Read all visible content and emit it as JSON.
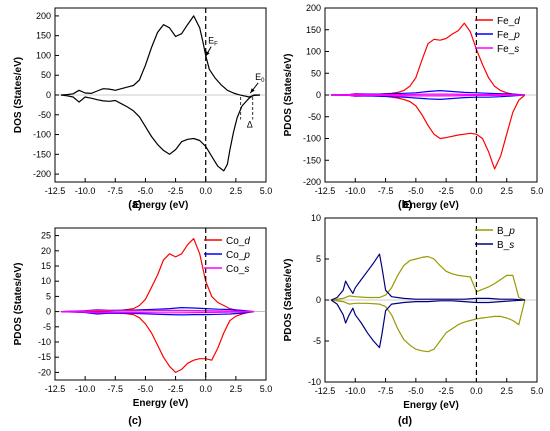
{
  "chart_data": [
    {
      "panel": "(a)",
      "type": "line",
      "xlabel": "Energy (eV)",
      "ylabel": "DOS (States/eV)",
      "xlim": [
        -12.5,
        5.0
      ],
      "ylim": [
        -220,
        220
      ],
      "xticks": [
        -12.5,
        -10.0,
        -7.5,
        -5.0,
        -2.5,
        0.0,
        2.5,
        5.0
      ],
      "yticks": [
        -200,
        -150,
        -100,
        -50,
        0,
        50,
        100,
        150,
        200
      ],
      "grid": false,
      "fermi_line_x": 0,
      "annotations": [
        {
          "text": "E",
          "sub": "F",
          "x": 0.2,
          "y": 130,
          "arrow_to": [
            0.0,
            98
          ]
        },
        {
          "text": "E",
          "sub": "0",
          "x": 4.1,
          "y": 38,
          "arrow_to": [
            3.7,
            5
          ]
        },
        {
          "text": "Δ",
          "x": 3.4,
          "y": -82
        }
      ],
      "series": [
        {
          "color": "#000000",
          "x": [
            -12.0,
            -11.5,
            -11.0,
            -10.5,
            -10.0,
            -9.5,
            -9.0,
            -8.5,
            -8.0,
            -7.5,
            -7.0,
            -6.5,
            -6.0,
            -5.5,
            -5.0,
            -4.5,
            -4.0,
            -3.5,
            -3.0,
            -2.5,
            -2.0,
            -1.5,
            -1.0,
            -0.5,
            -0.2,
            0.0,
            0.3,
            0.8,
            1.3,
            1.8,
            2.3,
            2.7,
            3.0,
            3.3,
            3.6,
            4.0,
            4.5
          ],
          "y": [
            0,
            1,
            3,
            12,
            5,
            4,
            10,
            16,
            15,
            12,
            16,
            20,
            24,
            38,
            75,
            120,
            158,
            178,
            170,
            148,
            155,
            178,
            200,
            170,
            130,
            100,
            65,
            42,
            25,
            12,
            5,
            1,
            -1,
            -3,
            -5,
            -1,
            0
          ]
        },
        {
          "color": "#000000",
          "x": [
            -12.0,
            -11.5,
            -11.0,
            -10.5,
            -10.0,
            -9.5,
            -9.0,
            -8.5,
            -8.0,
            -7.5,
            -7.0,
            -6.5,
            -6.0,
            -5.5,
            -5.0,
            -4.5,
            -4.0,
            -3.5,
            -3.0,
            -2.5,
            -2.0,
            -1.5,
            -1.0,
            -0.5,
            0.0,
            0.3,
            0.6,
            1.0,
            1.5,
            1.8,
            2.0,
            2.3,
            2.6,
            3.0,
            3.3,
            3.6,
            4.0,
            4.5
          ],
          "y": [
            0,
            -2,
            -5,
            -18,
            -5,
            -8,
            -12,
            -15,
            -16,
            -14,
            -22,
            -30,
            -40,
            -55,
            -80,
            -105,
            -125,
            -140,
            -150,
            -138,
            -118,
            -112,
            -110,
            -115,
            -130,
            -145,
            -160,
            -180,
            -192,
            -175,
            -140,
            -95,
            -58,
            -28,
            -18,
            -8,
            0,
            0
          ]
        }
      ]
    },
    {
      "panel": "(b)",
      "type": "line",
      "xlabel": "Energy (eV)",
      "ylabel": "PDOS (States/eV)",
      "xlim": [
        -12.5,
        5.0
      ],
      "ylim": [
        -200,
        200
      ],
      "xticks": [
        -12.5,
        -10.0,
        -7.5,
        -5.0,
        -2.5,
        0.0,
        2.5,
        5.0
      ],
      "yticks": [
        -200,
        -150,
        -100,
        -50,
        0,
        50,
        100,
        150,
        200
      ],
      "grid": false,
      "fermi_line_x": 0,
      "legend_position": "top-right",
      "series": [
        {
          "name": "Fe_d",
          "color": "#ff0000",
          "x": [
            -12.0,
            -11.0,
            -10.0,
            -9.0,
            -8.0,
            -7.5,
            -7.0,
            -6.5,
            -6.0,
            -5.5,
            -5.0,
            -4.5,
            -4.0,
            -3.5,
            -3.0,
            -2.5,
            -2.0,
            -1.5,
            -1.0,
            -0.5,
            0.0,
            0.5,
            1.0,
            1.5,
            2.0,
            2.5,
            3.0,
            3.5,
            4.0
          ],
          "y": [
            0,
            0,
            1,
            2,
            2,
            3,
            4,
            6,
            10,
            20,
            40,
            80,
            118,
            128,
            126,
            130,
            140,
            148,
            165,
            145,
            105,
            70,
            40,
            20,
            10,
            5,
            2,
            1,
            0
          ]
        },
        {
          "name": "Fe_d",
          "color": "#ff0000",
          "x": [
            -12.0,
            -11.0,
            -10.0,
            -9.0,
            -8.0,
            -7.5,
            -7.0,
            -6.5,
            -6.0,
            -5.5,
            -5.0,
            -4.5,
            -4.0,
            -3.5,
            -3.0,
            -2.5,
            -2.0,
            -1.5,
            -1.0,
            -0.5,
            0.0,
            0.5,
            1.0,
            1.5,
            2.0,
            2.5,
            3.0,
            3.5,
            4.0
          ],
          "y": [
            0,
            0,
            -1,
            -2,
            -2,
            -3,
            -5,
            -7,
            -10,
            -15,
            -25,
            -45,
            -70,
            -90,
            -100,
            -98,
            -95,
            -92,
            -90,
            -88,
            -90,
            -100,
            -130,
            -170,
            -140,
            -90,
            -40,
            -12,
            0
          ]
        },
        {
          "name": "Fe_p",
          "color": "#0000ff",
          "x": [
            -12.0,
            -10.5,
            -10.0,
            -9.0,
            -8.0,
            -7.0,
            -6.0,
            -5.0,
            -4.0,
            -3.0,
            -2.0,
            -1.0,
            0.0,
            1.0,
            2.0,
            3.0,
            4.0
          ],
          "y": [
            0,
            1,
            3,
            2,
            2,
            3,
            4,
            5,
            8,
            10,
            8,
            6,
            5,
            4,
            3,
            2,
            0
          ]
        },
        {
          "name": "Fe_p",
          "color": "#0000ff",
          "x": [
            -12.0,
            -10.5,
            -10.0,
            -9.0,
            -8.0,
            -7.0,
            -6.0,
            -5.0,
            -4.0,
            -3.0,
            -2.0,
            -1.0,
            0.0,
            1.0,
            2.0,
            3.0,
            4.0
          ],
          "y": [
            0,
            -1,
            -3,
            -2,
            -3,
            -4,
            -5,
            -7,
            -9,
            -10,
            -8,
            -6,
            -5,
            -5,
            -4,
            -2,
            0
          ]
        },
        {
          "name": "Fe_s",
          "color": "#ff00ff",
          "x": [
            -12.0,
            -10.5,
            -10.0,
            -9.0,
            -8.0,
            -6.0,
            -4.0,
            -2.0,
            0.0,
            2.0,
            4.0
          ],
          "y": [
            0,
            1,
            2,
            1,
            1,
            1,
            2,
            2,
            1,
            1,
            0
          ]
        },
        {
          "name": "Fe_s",
          "color": "#ff00ff",
          "x": [
            -12.0,
            -10.5,
            -10.0,
            -9.0,
            -8.0,
            -6.0,
            -4.0,
            -2.0,
            0.0,
            2.0,
            4.0
          ],
          "y": [
            0,
            -1,
            -2,
            -1,
            -1,
            -2,
            -2,
            -2,
            -1,
            -1,
            0
          ]
        }
      ]
    },
    {
      "panel": "(c)",
      "type": "line",
      "xlabel": "Energy (eV)",
      "ylabel": "PDOS (States/eV)",
      "xlim": [
        -12.5,
        5.0
      ],
      "ylim": [
        -22.5,
        27.5
      ],
      "xticks": [
        -12.5,
        -10.0,
        -7.5,
        -5.0,
        -2.5,
        0.0,
        2.5,
        5.0
      ],
      "yticks": [
        -20,
        -15,
        -10,
        -5,
        0,
        5,
        10,
        15,
        20,
        25
      ],
      "grid": false,
      "fermi_line_x": 0,
      "legend_position": "top-right",
      "series": [
        {
          "name": "Co_d",
          "color": "#ff0000",
          "x": [
            -12.0,
            -10.0,
            -8.0,
            -7.0,
            -6.0,
            -5.5,
            -5.0,
            -4.5,
            -4.0,
            -3.5,
            -3.0,
            -2.5,
            -2.0,
            -1.5,
            -1.0,
            -0.5,
            0.0,
            0.5,
            1.0,
            1.5,
            2.0,
            2.5,
            3.0,
            3.5,
            4.0
          ],
          "y": [
            0,
            0.1,
            0.2,
            0.4,
            1,
            2,
            4,
            8,
            12,
            17,
            19,
            18,
            19,
            22,
            24,
            19,
            10,
            5,
            3,
            2,
            1,
            0.5,
            0.3,
            0.1,
            0
          ]
        },
        {
          "name": "Co_d",
          "color": "#ff0000",
          "x": [
            -12.0,
            -10.0,
            -8.0,
            -7.0,
            -6.0,
            -5.5,
            -5.0,
            -4.5,
            -4.0,
            -3.5,
            -3.0,
            -2.5,
            -2.0,
            -1.5,
            -1.0,
            -0.5,
            0.0,
            0.5,
            1.0,
            1.5,
            2.0,
            2.5,
            3.0,
            3.5,
            4.0
          ],
          "y": [
            0,
            -0.1,
            -0.2,
            -0.5,
            -1,
            -2,
            -4,
            -7,
            -11,
            -15,
            -18,
            -20,
            -19,
            -17,
            -16,
            -15.5,
            -15.5,
            -16,
            -12,
            -7,
            -3,
            -1.5,
            -0.8,
            -0.3,
            0
          ]
        },
        {
          "name": "Co_p",
          "color": "#0000ff",
          "x": [
            -12.0,
            -10.0,
            -9.0,
            -8.0,
            -6.0,
            -4.0,
            -3.0,
            -2.0,
            -1.0,
            0.0,
            1.0,
            2.0,
            3.0,
            4.0
          ],
          "y": [
            0,
            0.3,
            0.6,
            0.4,
            0.5,
            0.8,
            1.0,
            1.3,
            1.2,
            1.0,
            0.8,
            0.7,
            0.4,
            0
          ]
        },
        {
          "name": "Co_p",
          "color": "#0000ff",
          "x": [
            -12.0,
            -10.0,
            -9.0,
            -8.0,
            -6.0,
            -4.0,
            -3.0,
            -2.0,
            -1.0,
            0.0,
            1.0,
            2.0,
            3.0,
            4.0
          ],
          "y": [
            0,
            -0.3,
            -0.8,
            -0.5,
            -0.6,
            -0.9,
            -1.0,
            -1.1,
            -1.0,
            -1.0,
            -0.9,
            -0.8,
            -0.5,
            0
          ]
        },
        {
          "name": "Co_s",
          "color": "#ff00ff",
          "x": [
            -12.0,
            -10.0,
            -9.0,
            -8.0,
            -6.0,
            -4.0,
            -2.0,
            0.0,
            2.0,
            4.0
          ],
          "y": [
            0,
            0.2,
            0.4,
            0.3,
            0.3,
            0.4,
            0.4,
            0.3,
            0.2,
            0
          ]
        },
        {
          "name": "Co_s",
          "color": "#ff00ff",
          "x": [
            -12.0,
            -10.0,
            -9.0,
            -8.0,
            -6.0,
            -4.0,
            -2.0,
            0.0,
            2.0,
            4.0
          ],
          "y": [
            0,
            -0.2,
            -0.4,
            -0.3,
            -0.3,
            -0.4,
            -0.4,
            -0.3,
            -0.2,
            0
          ]
        }
      ]
    },
    {
      "panel": "(d)",
      "type": "line",
      "xlabel": "Energy (eV)",
      "ylabel": "PDOS (States/eV)",
      "xlim": [
        -12.5,
        5.0
      ],
      "ylim": [
        -10,
        10
      ],
      "xticks": [
        -12.5,
        -10.0,
        -7.5,
        -5.0,
        -2.5,
        0.0,
        2.5,
        5.0
      ],
      "yticks": [
        -10,
        -5,
        0,
        5,
        10
      ],
      "grid": false,
      "fermi_line_x": 0,
      "legend_position": "top-right",
      "series": [
        {
          "name": "B_p",
          "color": "#999900",
          "x": [
            -12.0,
            -11.0,
            -10.5,
            -10.0,
            -9.0,
            -8.0,
            -7.5,
            -7.0,
            -6.5,
            -6.0,
            -5.5,
            -5.0,
            -4.5,
            -4.0,
            -3.5,
            -3.0,
            -2.5,
            -2.0,
            -1.5,
            -1.0,
            -0.5,
            0.0,
            0.5,
            1.0,
            1.5,
            2.0,
            2.5,
            3.0,
            3.5,
            4.0
          ],
          "y": [
            0,
            0.2,
            0.5,
            0.4,
            0.3,
            0.3,
            0.6,
            1.5,
            3.0,
            4.2,
            4.8,
            5.0,
            5.2,
            5.3,
            5.0,
            4.2,
            3.5,
            3.2,
            3.0,
            2.9,
            2.8,
            1.0,
            1.3,
            1.6,
            2.0,
            2.5,
            3.0,
            3.0,
            0.3,
            0
          ]
        },
        {
          "name": "B_p",
          "color": "#999900",
          "x": [
            -12.0,
            -11.0,
            -10.5,
            -10.0,
            -9.0,
            -8.0,
            -7.5,
            -7.0,
            -6.5,
            -6.0,
            -5.5,
            -5.0,
            -4.5,
            -4.0,
            -3.5,
            -3.0,
            -2.5,
            -2.0,
            -1.5,
            -1.0,
            -0.5,
            0.0,
            0.5,
            1.0,
            1.5,
            2.0,
            2.5,
            3.0,
            3.5,
            4.0
          ],
          "y": [
            0,
            -0.2,
            -0.5,
            -0.4,
            -0.4,
            -0.5,
            -0.8,
            -1.8,
            -3.5,
            -4.8,
            -5.5,
            -6.0,
            -6.2,
            -6.3,
            -6.0,
            -5.0,
            -4.0,
            -3.5,
            -3.0,
            -2.7,
            -2.5,
            -2.3,
            -2.2,
            -2.1,
            -2.0,
            -2.0,
            -2.2,
            -2.5,
            -3.0,
            0
          ]
        },
        {
          "name": "B_s",
          "color": "#000080",
          "x": [
            -12.0,
            -11.5,
            -11.0,
            -10.8,
            -10.5,
            -10.2,
            -10.0,
            -9.5,
            -9.0,
            -8.5,
            -8.0,
            -7.8,
            -7.5,
            -7.0,
            -6.0,
            -5.0,
            -4.0,
            -3.0,
            -2.0,
            -1.0,
            0.0,
            1.0,
            2.0,
            3.0,
            4.0
          ],
          "y": [
            0,
            0.3,
            1.2,
            2.3,
            1.5,
            0.8,
            1.5,
            2.5,
            3.5,
            4.5,
            5.6,
            4.0,
            1.2,
            0.4,
            0.2,
            0.1,
            0.1,
            0.1,
            0.1,
            0.1,
            0.2,
            0.2,
            0.1,
            0.1,
            0
          ]
        },
        {
          "name": "B_s",
          "color": "#000080",
          "x": [
            -12.0,
            -11.5,
            -11.0,
            -10.8,
            -10.5,
            -10.2,
            -10.0,
            -9.5,
            -9.0,
            -8.5,
            -8.0,
            -7.8,
            -7.5,
            -7.0,
            -6.0,
            -5.0,
            -4.0,
            -3.0,
            -2.0,
            -1.0,
            0.0,
            1.0,
            2.0,
            3.0,
            4.0
          ],
          "y": [
            0,
            -0.5,
            -1.8,
            -2.8,
            -1.8,
            -1.0,
            -1.8,
            -2.8,
            -4.0,
            -5.0,
            -5.8,
            -4.2,
            -1.3,
            -0.5,
            -0.3,
            -0.2,
            -0.2,
            -0.1,
            -0.1,
            -0.2,
            -0.3,
            -0.3,
            -0.2,
            -0.1,
            0
          ]
        }
      ]
    }
  ]
}
